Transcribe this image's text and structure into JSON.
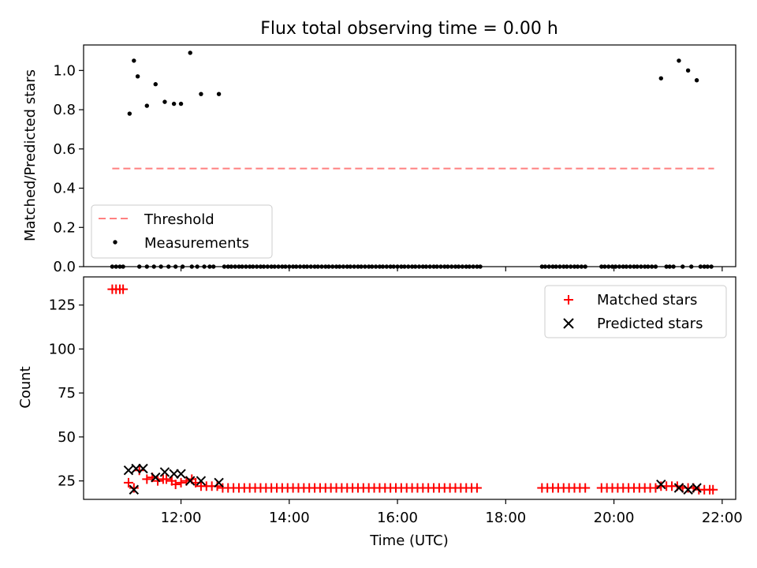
{
  "chart_data": [
    {
      "type": "scatter",
      "title": "Flux total observing time = 0.00 h",
      "xlabel": "",
      "ylabel": "Matched/Predicted stars",
      "xlim": [
        10.2,
        22.25
      ],
      "ylim": [
        0.0,
        1.13
      ],
      "yticks": [
        0.0,
        0.2,
        0.4,
        0.6,
        0.8,
        1.0
      ],
      "ytick_labels": [
        "0.0",
        "0.2",
        "0.4",
        "0.6",
        "0.8",
        "1.0"
      ],
      "xticks": [
        12,
        14,
        16,
        18,
        20,
        22
      ],
      "show_xtick_labels": false,
      "grid": false,
      "legend": {
        "position": "lower-left",
        "entries": [
          "Threshold",
          "Measurements"
        ]
      },
      "threshold": {
        "name": "Threshold",
        "value": 0.5,
        "x_start": 10.73,
        "x_end": 21.85,
        "color": "#ff8080",
        "style": "dashed"
      },
      "series": [
        {
          "name": "Measurements",
          "color": "#000000",
          "marker": "dot",
          "points": [
            [
              11.05,
              0.78
            ],
            [
              11.13,
              1.05
            ],
            [
              11.2,
              0.97
            ],
            [
              11.37,
              0.82
            ],
            [
              11.53,
              0.93
            ],
            [
              11.7,
              0.84
            ],
            [
              11.87,
              0.83
            ],
            [
              12.0,
              0.83
            ],
            [
              12.17,
              1.09
            ],
            [
              12.37,
              0.88
            ],
            [
              12.7,
              0.88
            ],
            [
              20.87,
              0.96
            ],
            [
              21.2,
              1.05
            ],
            [
              21.37,
              1.0
            ],
            [
              21.53,
              0.95
            ],
            [
              10.73,
              0
            ],
            [
              10.8,
              0
            ],
            [
              10.87,
              0
            ],
            [
              10.93,
              0
            ],
            [
              11.23,
              0
            ],
            [
              11.37,
              0
            ],
            [
              11.5,
              0
            ],
            [
              11.63,
              0
            ],
            [
              11.77,
              0
            ],
            [
              11.9,
              0
            ],
            [
              12.03,
              0
            ],
            [
              12.2,
              0
            ],
            [
              12.3,
              0
            ],
            [
              12.43,
              0
            ],
            [
              12.53,
              0
            ],
            [
              12.6,
              0
            ],
            [
              12.8,
              0
            ],
            [
              12.87,
              0
            ],
            [
              12.93,
              0
            ],
            [
              13.0,
              0
            ],
            [
              13.07,
              0
            ],
            [
              13.13,
              0
            ],
            [
              13.2,
              0
            ],
            [
              13.27,
              0
            ],
            [
              13.33,
              0
            ],
            [
              13.4,
              0
            ],
            [
              13.47,
              0
            ],
            [
              13.53,
              0
            ],
            [
              13.6,
              0
            ],
            [
              13.67,
              0
            ],
            [
              13.73,
              0
            ],
            [
              13.8,
              0
            ],
            [
              13.87,
              0
            ],
            [
              13.93,
              0
            ],
            [
              14.0,
              0
            ],
            [
              14.07,
              0
            ],
            [
              14.13,
              0
            ],
            [
              14.2,
              0
            ],
            [
              14.27,
              0
            ],
            [
              14.33,
              0
            ],
            [
              14.4,
              0
            ],
            [
              14.47,
              0
            ],
            [
              14.53,
              0
            ],
            [
              14.6,
              0
            ],
            [
              14.67,
              0
            ],
            [
              14.73,
              0
            ],
            [
              14.8,
              0
            ],
            [
              14.87,
              0
            ],
            [
              14.93,
              0
            ],
            [
              15.0,
              0
            ],
            [
              15.07,
              0
            ],
            [
              15.13,
              0
            ],
            [
              15.2,
              0
            ],
            [
              15.27,
              0
            ],
            [
              15.33,
              0
            ],
            [
              15.4,
              0
            ],
            [
              15.47,
              0
            ],
            [
              15.53,
              0
            ],
            [
              15.6,
              0
            ],
            [
              15.67,
              0
            ],
            [
              15.73,
              0
            ],
            [
              15.8,
              0
            ],
            [
              15.87,
              0
            ],
            [
              15.93,
              0
            ],
            [
              16.0,
              0
            ],
            [
              16.07,
              0
            ],
            [
              16.13,
              0
            ],
            [
              16.2,
              0
            ],
            [
              16.27,
              0
            ],
            [
              16.33,
              0
            ],
            [
              16.4,
              0
            ],
            [
              16.47,
              0
            ],
            [
              16.53,
              0
            ],
            [
              16.6,
              0
            ],
            [
              16.67,
              0
            ],
            [
              16.73,
              0
            ],
            [
              16.8,
              0
            ],
            [
              16.87,
              0
            ],
            [
              16.93,
              0
            ],
            [
              17.0,
              0
            ],
            [
              17.07,
              0
            ],
            [
              17.13,
              0
            ],
            [
              17.2,
              0
            ],
            [
              17.27,
              0
            ],
            [
              17.33,
              0
            ],
            [
              17.4,
              0
            ],
            [
              17.47,
              0
            ],
            [
              17.53,
              0
            ],
            [
              18.67,
              0
            ],
            [
              18.73,
              0
            ],
            [
              18.8,
              0
            ],
            [
              18.87,
              0
            ],
            [
              18.93,
              0
            ],
            [
              19.0,
              0
            ],
            [
              19.07,
              0
            ],
            [
              19.13,
              0
            ],
            [
              19.2,
              0
            ],
            [
              19.27,
              0
            ],
            [
              19.33,
              0
            ],
            [
              19.4,
              0
            ],
            [
              19.47,
              0
            ],
            [
              19.77,
              0
            ],
            [
              19.83,
              0
            ],
            [
              19.9,
              0
            ],
            [
              19.97,
              0
            ],
            [
              20.03,
              0
            ],
            [
              20.1,
              0
            ],
            [
              20.17,
              0
            ],
            [
              20.23,
              0
            ],
            [
              20.3,
              0
            ],
            [
              20.37,
              0
            ],
            [
              20.43,
              0
            ],
            [
              20.5,
              0
            ],
            [
              20.57,
              0
            ],
            [
              20.63,
              0
            ],
            [
              20.7,
              0
            ],
            [
              20.77,
              0
            ],
            [
              20.97,
              0
            ],
            [
              21.03,
              0
            ],
            [
              21.1,
              0
            ],
            [
              21.27,
              0
            ],
            [
              21.43,
              0
            ],
            [
              21.6,
              0
            ],
            [
              21.67,
              0
            ],
            [
              21.73,
              0
            ],
            [
              21.8,
              0
            ]
          ]
        }
      ]
    },
    {
      "type": "scatter",
      "title": "",
      "xlabel": "Time (UTC)",
      "ylabel": "Count",
      "xlim": [
        10.2,
        22.25
      ],
      "ylim": [
        14.5,
        141
      ],
      "yticks": [
        25,
        50,
        75,
        100,
        125
      ],
      "ytick_labels": [
        "25",
        "50",
        "75",
        "100",
        "125"
      ],
      "xticks": [
        12,
        14,
        16,
        18,
        20,
        22
      ],
      "xtick_labels": [
        "12:00",
        "14:00",
        "16:00",
        "18:00",
        "20:00",
        "22:00"
      ],
      "grid": false,
      "legend": {
        "position": "top-right",
        "entries": [
          "Matched stars",
          "Predicted stars"
        ]
      },
      "series": [
        {
          "name": "Matched stars",
          "color": "#ff0000",
          "marker": "plus",
          "points": [
            [
              10.73,
              134
            ],
            [
              10.8,
              134
            ],
            [
              10.87,
              134
            ],
            [
              10.93,
              134
            ],
            [
              11.03,
              24
            ],
            [
              11.13,
              21
            ],
            [
              11.23,
              31
            ],
            [
              11.37,
              26
            ],
            [
              11.47,
              27
            ],
            [
              11.57,
              25
            ],
            [
              11.67,
              26
            ],
            [
              11.73,
              26
            ],
            [
              11.83,
              25
            ],
            [
              11.9,
              23
            ],
            [
              12.0,
              24
            ],
            [
              12.1,
              25
            ],
            [
              12.2,
              26
            ],
            [
              12.27,
              24
            ],
            [
              12.37,
              22
            ],
            [
              12.47,
              22
            ],
            [
              12.57,
              22
            ],
            [
              12.67,
              22
            ],
            [
              12.77,
              21
            ],
            [
              12.87,
              21
            ],
            [
              12.97,
              21
            ],
            [
              13.07,
              21
            ],
            [
              13.17,
              21
            ],
            [
              13.27,
              21
            ],
            [
              13.37,
              21
            ],
            [
              13.47,
              21
            ],
            [
              13.57,
              21
            ],
            [
              13.67,
              21
            ],
            [
              13.77,
              21
            ],
            [
              13.87,
              21
            ],
            [
              13.97,
              21
            ],
            [
              14.07,
              21
            ],
            [
              14.17,
              21
            ],
            [
              14.27,
              21
            ],
            [
              14.37,
              21
            ],
            [
              14.47,
              21
            ],
            [
              14.57,
              21
            ],
            [
              14.67,
              21
            ],
            [
              14.77,
              21
            ],
            [
              14.87,
              21
            ],
            [
              14.97,
              21
            ],
            [
              15.07,
              21
            ],
            [
              15.17,
              21
            ],
            [
              15.27,
              21
            ],
            [
              15.37,
              21
            ],
            [
              15.47,
              21
            ],
            [
              15.57,
              21
            ],
            [
              15.67,
              21
            ],
            [
              15.77,
              21
            ],
            [
              15.87,
              21
            ],
            [
              15.97,
              21
            ],
            [
              16.07,
              21
            ],
            [
              16.17,
              21
            ],
            [
              16.27,
              21
            ],
            [
              16.37,
              21
            ],
            [
              16.47,
              21
            ],
            [
              16.57,
              21
            ],
            [
              16.67,
              21
            ],
            [
              16.77,
              21
            ],
            [
              16.87,
              21
            ],
            [
              16.97,
              21
            ],
            [
              17.07,
              21
            ],
            [
              17.17,
              21
            ],
            [
              17.27,
              21
            ],
            [
              17.37,
              21
            ],
            [
              17.47,
              21
            ],
            [
              18.67,
              21
            ],
            [
              18.77,
              21
            ],
            [
              18.87,
              21
            ],
            [
              18.97,
              21
            ],
            [
              19.07,
              21
            ],
            [
              19.17,
              21
            ],
            [
              19.27,
              21
            ],
            [
              19.37,
              21
            ],
            [
              19.47,
              21
            ],
            [
              19.77,
              21
            ],
            [
              19.87,
              21
            ],
            [
              19.97,
              21
            ],
            [
              20.07,
              21
            ],
            [
              20.17,
              21
            ],
            [
              20.27,
              21
            ],
            [
              20.37,
              21
            ],
            [
              20.47,
              21
            ],
            [
              20.57,
              21
            ],
            [
              20.67,
              21
            ],
            [
              20.77,
              21
            ],
            [
              20.87,
              22
            ],
            [
              20.97,
              22
            ],
            [
              21.07,
              22
            ],
            [
              21.17,
              22
            ],
            [
              21.27,
              21
            ],
            [
              21.37,
              21
            ],
            [
              21.47,
              21
            ],
            [
              21.57,
              20
            ],
            [
              21.67,
              20
            ],
            [
              21.77,
              20
            ],
            [
              21.83,
              20
            ]
          ]
        },
        {
          "name": "Predicted stars",
          "color": "#000000",
          "marker": "x",
          "points": [
            [
              11.03,
              31
            ],
            [
              11.13,
              20
            ],
            [
              11.17,
              32
            ],
            [
              11.3,
              32
            ],
            [
              11.53,
              27
            ],
            [
              11.7,
              30
            ],
            [
              11.87,
              29
            ],
            [
              12.0,
              29
            ],
            [
              12.17,
              25
            ],
            [
              12.37,
              25
            ],
            [
              12.7,
              24
            ],
            [
              20.87,
              23
            ],
            [
              21.2,
              21
            ],
            [
              21.37,
              20
            ],
            [
              21.53,
              21
            ]
          ]
        }
      ]
    }
  ]
}
